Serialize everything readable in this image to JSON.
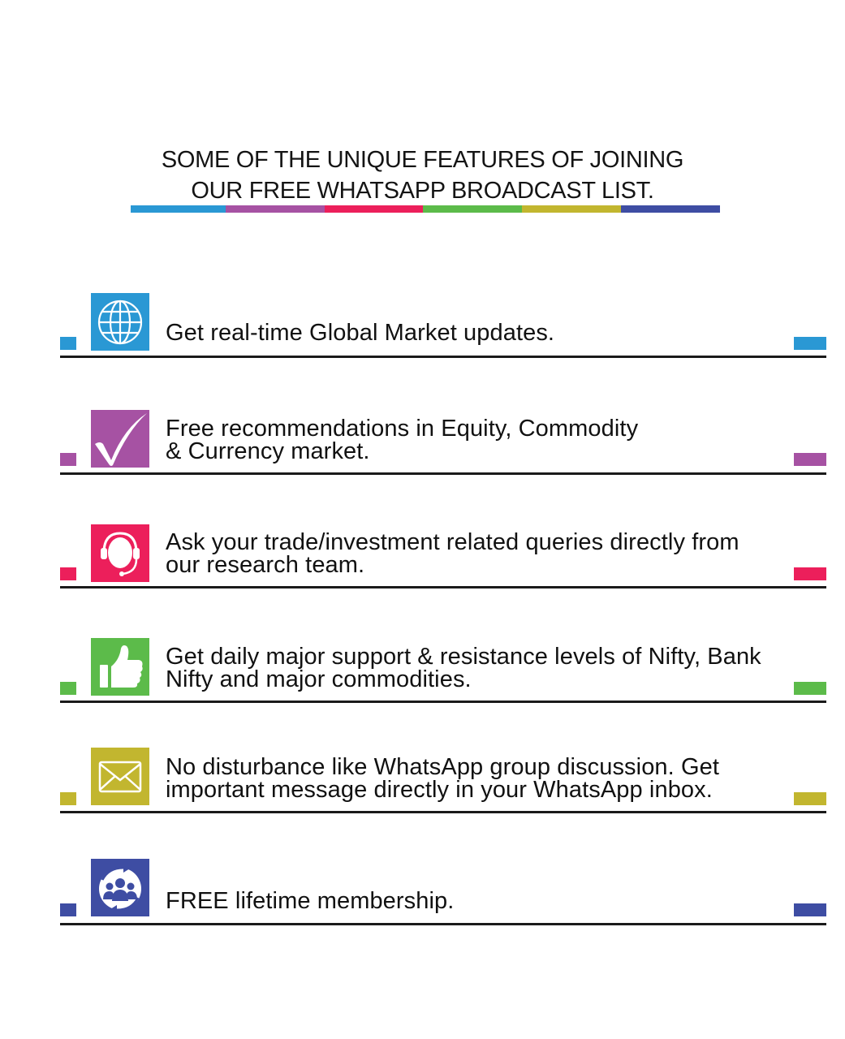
{
  "header": {
    "title_line_1": "SOME OF THE UNIQUE FEATURES OF JOINING",
    "title_line_2": "OUR FREE WHATSAPP BROADCAST LIST."
  },
  "color_bar": [
    "#2a98d4",
    "#a652a3",
    "#ec1f5b",
    "#5cbb4a",
    "#c2b62f",
    "#3e4da3"
  ],
  "features": [
    {
      "text": "Get real-time Global Market updates.",
      "icon": "globe-icon",
      "color": "#2a98d4"
    },
    {
      "text": "Free recommendations in Equity, Commodity\n& Currency market.",
      "icon": "checkmark-icon",
      "color": "#a652a3"
    },
    {
      "text": "Ask your trade/investment related queries directly from\nour research team.",
      "icon": "headset-support-icon",
      "color": "#ec1f5b"
    },
    {
      "text": "Get daily major support & resistance levels of Nifty, Bank\nNifty and major commodities.",
      "icon": "thumbs-up-icon",
      "color": "#5cbb4a"
    },
    {
      "text": "No disturbance like WhatsApp group discussion. Get\nimportant message directly in your WhatsApp inbox.",
      "icon": "envelope-icon",
      "color": "#c2b62f"
    },
    {
      "text": "FREE lifetime membership.",
      "icon": "members-cycle-icon",
      "color": "#3e4da3"
    }
  ]
}
